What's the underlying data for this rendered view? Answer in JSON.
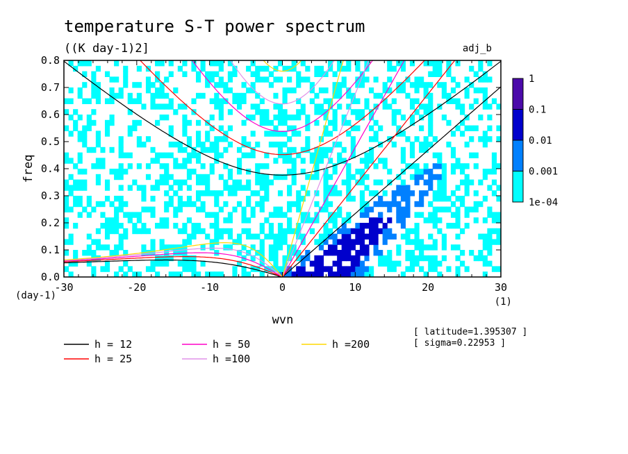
{
  "chart_data": {
    "type": "heatmap",
    "title": "temperature S-T power spectrum",
    "subtitle": "((K day-1)2]",
    "experiment_label": "adj_b",
    "xlabel": "wvn",
    "ylabel": "freq",
    "x_unit": "(1)",
    "y_unit": "(day-1)",
    "xlim": [
      -30,
      30
    ],
    "ylim": [
      0,
      0.8
    ],
    "x_ticks": [
      -30,
      -20,
      -10,
      0,
      10,
      20,
      30
    ],
    "x_tick_labels": [
      "-30",
      "-20",
      "-10",
      "0",
      "10",
      "20",
      "30"
    ],
    "y_ticks": [
      0,
      0.1,
      0.2,
      0.3,
      0.4,
      0.5,
      0.6,
      0.7,
      0.8
    ],
    "y_tick_labels": [
      "0.0",
      "0.1",
      "0.2",
      "0.3",
      "0.4",
      "0.5",
      "0.6",
      "0.7",
      "0.8"
    ],
    "colorbar": {
      "levels": [
        "1e-04",
        "0.001",
        "0.01",
        "0.1",
        "1"
      ],
      "colors": [
        "#00ffff",
        "#0080ff",
        "#0000cc",
        "#4b0aaa"
      ]
    },
    "dispersion_curves": [
      {
        "label": "h = 12",
        "h": 12,
        "color": "#000000"
      },
      {
        "label": "h = 25",
        "h": 25,
        "color": "#ff0000"
      },
      {
        "label": "h = 50",
        "h": 50,
        "color": "#ff00c8"
      },
      {
        "label": "h =100",
        "h": 100,
        "color": "#e090e8"
      },
      {
        "label": "h =200",
        "h": 200,
        "color": "#ffd700"
      }
    ],
    "annotations": [
      "[ latitude=1.395307 ]",
      "[ sigma=0.22953 ]"
    ]
  }
}
